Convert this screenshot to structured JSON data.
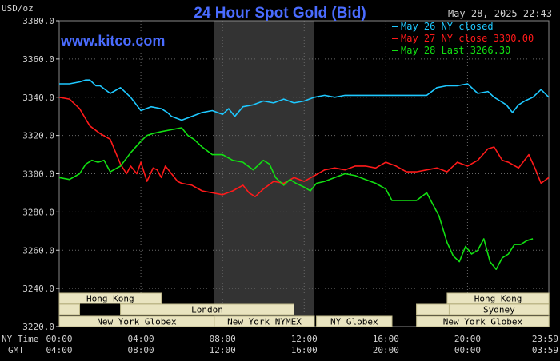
{
  "title": "24 Hour Spot Gold (Bid)",
  "timestamp": "May 28, 2025 22:43",
  "brand": "www.kitco.com",
  "unit_label": "USD/oz",
  "colors": {
    "background": "#000000",
    "grid": "#6a6a6a",
    "axis_text": "#d0d0d0",
    "title": "#4a6cff",
    "brand": "#4a6cff",
    "may26": "#1ec8ff",
    "may27": "#ff1a1a",
    "may28": "#12e012",
    "session_fill": "#e9e4c0",
    "session_border": "#bfb98a",
    "session_text": "#000000",
    "shade": "#333333"
  },
  "legend": [
    {
      "label": "May 26 NY closed",
      "color": "#1ec8ff"
    },
    {
      "label": "May 27 NY close 3300.00",
      "color": "#ff1a1a"
    },
    {
      "label": "May 28 Last 3266.30",
      "color": "#12e012"
    }
  ],
  "time_axis": {
    "ny_label": "NY Time",
    "gmt_label": "GMT",
    "ny_ticks": [
      "00:00",
      "04:00",
      "08:00",
      "12:00",
      "16:00",
      "20:00",
      "23:59"
    ],
    "gmt_ticks": [
      "04:00",
      "08:00",
      "12:00",
      "16:00",
      "20:00",
      "00:00",
      "03:59"
    ]
  },
  "sessions": {
    "row1": [
      {
        "label": "Hong Kong",
        "start": 0,
        "end": 5
      },
      {
        "label": "Hong Kong",
        "start": 19,
        "end": 23.99
      }
    ],
    "row2": [
      {
        "label": "",
        "start": 0,
        "end": 1
      },
      {
        "label": "London",
        "start": 3,
        "end": 11.5
      },
      {
        "label": "",
        "start": 17.5,
        "end": 18.8
      }
    ],
    "row3": [
      {
        "label": "",
        "start": 17.5,
        "end": 19.1
      },
      {
        "label": "Sydney",
        "start": 19.1,
        "end": 23.99
      }
    ],
    "row4": [
      {
        "label": "New York Globex",
        "start": 0,
        "end": 7.6
      },
      {
        "label": "New York NYMEX",
        "start": 7.6,
        "end": 12.5
      },
      {
        "label": "NY Globex",
        "start": 12.6,
        "end": 16.3
      },
      {
        "label": "New York Globex",
        "start": 17.5,
        "end": 23.99
      }
    ]
  },
  "chart_data": {
    "type": "line",
    "title": "24 Hour Spot Gold (Bid)",
    "ylabel": "USD/oz",
    "xlabel": "NY Time",
    "x_unit": "hours (NY time)",
    "xlim": [
      0,
      23.98
    ],
    "ylim": [
      3220,
      3380
    ],
    "yticks": [
      "3380.0",
      "3360.0",
      "3340.0",
      "3320.0",
      "3300.0",
      "3280.0",
      "3260.0",
      "3240.0",
      "3220.0"
    ],
    "grid": true,
    "legend_position": "top-right",
    "shaded_region": [
      7.6,
      12.5
    ],
    "series": [
      {
        "name": "May 26 NY closed",
        "color": "#1ec8ff",
        "x": [
          0,
          0.5,
          1,
          1.3,
          1.5,
          1.8,
          2,
          2.5,
          3,
          3.5,
          4,
          4.5,
          5,
          5.3,
          5.5,
          6,
          6.5,
          7,
          7.5,
          8,
          8.3,
          8.6,
          9,
          9.5,
          10,
          10.5,
          11,
          11.5,
          12,
          12.5,
          13,
          13.5,
          14,
          14.5,
          15,
          15.5,
          16,
          16.5,
          17,
          17.5,
          18,
          18.5,
          19,
          19.5,
          20,
          20.5,
          21,
          21.3,
          21.6,
          21.9,
          22.2,
          22.5,
          22.8,
          23.2,
          23.6,
          23.98
        ],
        "y": [
          3347,
          3347,
          3348,
          3349,
          3349,
          3346,
          3346,
          3342,
          3345,
          3340,
          3333,
          3335,
          3334,
          3332,
          3330,
          3328,
          3330,
          3332,
          3333,
          3331,
          3334,
          3330,
          3335,
          3336,
          3338,
          3337,
          3339,
          3337,
          3338,
          3340,
          3341,
          3340,
          3341,
          3341,
          3341,
          3341,
          3341,
          3341,
          3341,
          3341,
          3341,
          3345,
          3346,
          3346,
          3347,
          3342,
          3343,
          3340,
          3338,
          3336,
          3332,
          3336,
          3338,
          3340,
          3344,
          3340
        ]
      },
      {
        "name": "May 27 NY close 3300.00",
        "color": "#ff1a1a",
        "x": [
          0,
          0.5,
          1,
          1.5,
          2,
          2.5,
          3,
          3.3,
          3.5,
          3.8,
          4,
          4.3,
          4.6,
          4.8,
          5,
          5.2,
          5.5,
          5.8,
          6,
          6.5,
          7,
          7.5,
          8,
          8.5,
          9,
          9.3,
          9.6,
          10,
          10.5,
          11,
          11.5,
          12,
          12.5,
          13,
          13.5,
          14,
          14.5,
          15,
          15.5,
          16,
          16.5,
          17,
          17.5,
          18,
          18.5,
          19,
          19.5,
          20,
          20.5,
          21,
          21.3,
          21.7,
          22,
          22.5,
          23,
          23.3,
          23.6,
          23.98
        ],
        "y": [
          3340,
          3339,
          3334,
          3325,
          3321,
          3318,
          3305,
          3300,
          3304,
          3300,
          3306,
          3296,
          3303,
          3302,
          3298,
          3304,
          3300,
          3296,
          3295,
          3294,
          3291,
          3290,
          3289,
          3291,
          3294,
          3290,
          3288,
          3292,
          3296,
          3295,
          3298,
          3296,
          3299,
          3302,
          3303,
          3302,
          3304,
          3304,
          3303,
          3306,
          3304,
          3301,
          3301,
          3302,
          3303,
          3301,
          3306,
          3304,
          3307,
          3313,
          3314,
          3307,
          3306,
          3303,
          3310,
          3303,
          3295,
          3298
        ]
      },
      {
        "name": "May 28 Last 3266.30",
        "color": "#12e012",
        "x": [
          0,
          0.5,
          1,
          1.3,
          1.6,
          1.9,
          2.2,
          2.5,
          3,
          3.5,
          4,
          4.3,
          4.6,
          5,
          5.5,
          6,
          6.3,
          6.6,
          7,
          7.5,
          8,
          8.5,
          9,
          9.5,
          10,
          10.3,
          10.6,
          11,
          11.3,
          11.6,
          12,
          12.3,
          12.6,
          13,
          13.5,
          14,
          14.5,
          15,
          15.5,
          16,
          16.3,
          16.6,
          17,
          17.5,
          18,
          18.3,
          18.6,
          19,
          19.3,
          19.6,
          19.9,
          20.2,
          20.5,
          20.8,
          21.1,
          21.4,
          21.7,
          22,
          22.3,
          22.6,
          22.9,
          23.2
        ],
        "y": [
          3298,
          3297,
          3300,
          3305,
          3307,
          3306,
          3307,
          3301,
          3304,
          3311,
          3317,
          3320,
          3321,
          3322,
          3323,
          3324,
          3320,
          3318,
          3314,
          3310,
          3310,
          3307,
          3306,
          3302,
          3307,
          3305,
          3298,
          3294,
          3297,
          3295,
          3293,
          3291,
          3295,
          3296,
          3298,
          3300,
          3299,
          3297,
          3295,
          3292,
          3286,
          3286,
          3286,
          3286,
          3290,
          3284,
          3278,
          3264,
          3257,
          3254,
          3262,
          3258,
          3260,
          3266,
          3254,
          3250,
          3256,
          3258,
          3263,
          3263,
          3265,
          3266
        ]
      }
    ]
  }
}
